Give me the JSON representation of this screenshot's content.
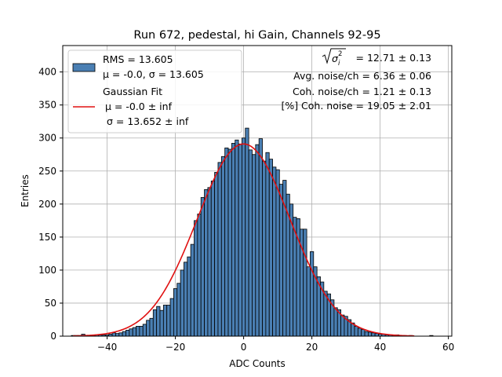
{
  "chart_data": {
    "type": "bar",
    "title": "Run 672, pedestal, hi Gain, Channels 92-95",
    "xlabel": "ADC Counts",
    "ylabel": "Entries",
    "xlim": [
      -53,
      61
    ],
    "ylim": [
      0,
      440
    ],
    "xticks": [
      -40,
      -20,
      0,
      20,
      40,
      60
    ],
    "yticks": [
      0,
      50,
      100,
      150,
      200,
      250,
      300,
      350,
      400
    ],
    "grid": true,
    "bin_width": 1,
    "bins": [
      {
        "x": -50,
        "y": 1
      },
      {
        "x": -49,
        "y": 1
      },
      {
        "x": -48,
        "y": 1
      },
      {
        "x": -47,
        "y": 3
      },
      {
        "x": -46,
        "y": 1
      },
      {
        "x": -45,
        "y": 1
      },
      {
        "x": -44,
        "y": 1
      },
      {
        "x": -43,
        "y": 2
      },
      {
        "x": -42,
        "y": 2
      },
      {
        "x": -41,
        "y": 2
      },
      {
        "x": -40,
        "y": 2
      },
      {
        "x": -39,
        "y": 3
      },
      {
        "x": -38,
        "y": 5
      },
      {
        "x": -37,
        "y": 4
      },
      {
        "x": -36,
        "y": 5
      },
      {
        "x": -35,
        "y": 7
      },
      {
        "x": -34,
        "y": 9
      },
      {
        "x": -33,
        "y": 11
      },
      {
        "x": -32,
        "y": 13
      },
      {
        "x": -31,
        "y": 15
      },
      {
        "x": -30,
        "y": 15
      },
      {
        "x": -29,
        "y": 18
      },
      {
        "x": -28,
        "y": 24
      },
      {
        "x": -27,
        "y": 27
      },
      {
        "x": -26,
        "y": 40
      },
      {
        "x": -25,
        "y": 45
      },
      {
        "x": -24,
        "y": 39
      },
      {
        "x": -23,
        "y": 47
      },
      {
        "x": -22,
        "y": 47
      },
      {
        "x": -21,
        "y": 57
      },
      {
        "x": -20,
        "y": 72
      },
      {
        "x": -19,
        "y": 80
      },
      {
        "x": -18,
        "y": 100
      },
      {
        "x": -17,
        "y": 112
      },
      {
        "x": -16,
        "y": 120
      },
      {
        "x": -15,
        "y": 139
      },
      {
        "x": -14,
        "y": 175
      },
      {
        "x": -13,
        "y": 185
      },
      {
        "x": -12,
        "y": 210
      },
      {
        "x": -11,
        "y": 222
      },
      {
        "x": -10,
        "y": 225
      },
      {
        "x": -9,
        "y": 235
      },
      {
        "x": -8,
        "y": 248
      },
      {
        "x": -7,
        "y": 263
      },
      {
        "x": -6,
        "y": 272
      },
      {
        "x": -5,
        "y": 285
      },
      {
        "x": -4,
        "y": 283
      },
      {
        "x": -3,
        "y": 292
      },
      {
        "x": -2,
        "y": 297
      },
      {
        "x": -1,
        "y": 291
      },
      {
        "x": 0,
        "y": 300
      },
      {
        "x": 1,
        "y": 315
      },
      {
        "x": 2,
        "y": 282
      },
      {
        "x": 3,
        "y": 275
      },
      {
        "x": 4,
        "y": 290
      },
      {
        "x": 5,
        "y": 299
      },
      {
        "x": 6,
        "y": 265
      },
      {
        "x": 7,
        "y": 278
      },
      {
        "x": 8,
        "y": 268
      },
      {
        "x": 9,
        "y": 256
      },
      {
        "x": 10,
        "y": 252
      },
      {
        "x": 11,
        "y": 230
      },
      {
        "x": 12,
        "y": 236
      },
      {
        "x": 13,
        "y": 215
      },
      {
        "x": 14,
        "y": 200
      },
      {
        "x": 15,
        "y": 180
      },
      {
        "x": 16,
        "y": 178
      },
      {
        "x": 17,
        "y": 162
      },
      {
        "x": 18,
        "y": 162
      },
      {
        "x": 19,
        "y": 105
      },
      {
        "x": 20,
        "y": 128
      },
      {
        "x": 21,
        "y": 105
      },
      {
        "x": 22,
        "y": 90
      },
      {
        "x": 23,
        "y": 82
      },
      {
        "x": 24,
        "y": 68
      },
      {
        "x": 25,
        "y": 64
      },
      {
        "x": 26,
        "y": 55
      },
      {
        "x": 27,
        "y": 43
      },
      {
        "x": 28,
        "y": 40
      },
      {
        "x": 29,
        "y": 32
      },
      {
        "x": 30,
        "y": 30
      },
      {
        "x": 31,
        "y": 25
      },
      {
        "x": 32,
        "y": 20
      },
      {
        "x": 33,
        "y": 15
      },
      {
        "x": 34,
        "y": 12
      },
      {
        "x": 35,
        "y": 10
      },
      {
        "x": 36,
        "y": 7
      },
      {
        "x": 37,
        "y": 6
      },
      {
        "x": 38,
        "y": 5
      },
      {
        "x": 39,
        "y": 4
      },
      {
        "x": 40,
        "y": 3
      },
      {
        "x": 41,
        "y": 3
      },
      {
        "x": 42,
        "y": 2
      },
      {
        "x": 43,
        "y": 2
      },
      {
        "x": 44,
        "y": 1
      },
      {
        "x": 45,
        "y": 2
      },
      {
        "x": 46,
        "y": 1
      },
      {
        "x": 47,
        "y": 1
      },
      {
        "x": 49,
        "y": 1
      },
      {
        "x": 55,
        "y": 1
      }
    ],
    "fit": {
      "mu": 0.0,
      "sigma": 13.652,
      "amplitude": 291,
      "x_range": [
        -50,
        50
      ]
    },
    "bar_color": "#4a7fb3",
    "fit_color": "#e01010",
    "legend_position": "top-left",
    "legend": {
      "hist_line1": "RMS = 13.605",
      "hist_line2": "μ = -0.0, σ = 13.605",
      "fit_line1": "Gaussian Fit",
      "fit_line2": "μ = -0.0 ± inf",
      "fit_line3": "σ = 13.652 ± inf"
    },
    "annotations": {
      "sigma_value": " = 12.71 ± 0.13",
      "avg_noise": "Avg. noise/ch = 6.36 ± 0.06",
      "coh_noise": "Coh. noise/ch = 1.21 ± 0.13",
      "coh_pct": "[%] Coh. noise = 19.05 ± 2.01"
    }
  }
}
